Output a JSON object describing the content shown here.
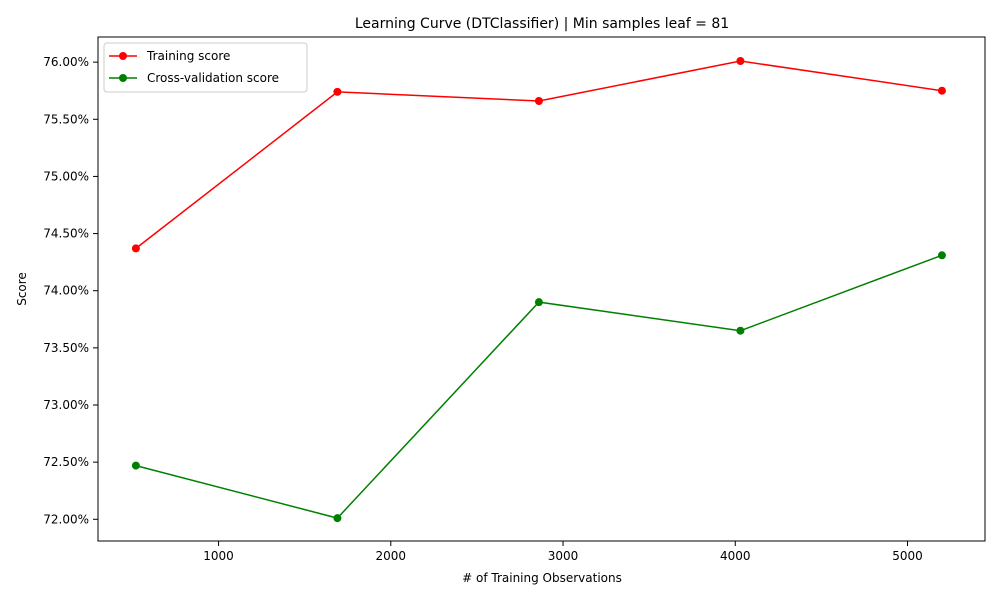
{
  "chart_data": {
    "type": "line",
    "title": "Learning Curve (DTClassifier) | Min samples leaf = 81",
    "xlabel": "# of Training Observations",
    "ylabel": "Score",
    "xlim": [
      300,
      5450
    ],
    "ylim": [
      0.7181,
      0.7622
    ],
    "x_ticks": [
      1000,
      2000,
      3000,
      4000,
      5000
    ],
    "x_tick_labels": [
      "1000",
      "2000",
      "3000",
      "4000",
      "5000"
    ],
    "y_ticks": [
      0.72,
      0.725,
      0.73,
      0.735,
      0.74,
      0.745,
      0.75,
      0.755,
      0.76
    ],
    "y_tick_labels": [
      "72.00%",
      "72.50%",
      "73.00%",
      "73.50%",
      "74.00%",
      "74.50%",
      "75.00%",
      "75.50%",
      "76.00%"
    ],
    "x": [
      520,
      1690,
      2860,
      4030,
      5200
    ],
    "series": [
      {
        "name": "Training score",
        "color": "#ff0000",
        "values": [
          0.7437,
          0.7574,
          0.7566,
          0.7601,
          0.7575
        ]
      },
      {
        "name": "Cross-validation score",
        "color": "#008000",
        "values": [
          0.7247,
          0.7201,
          0.739,
          0.7365,
          0.7431
        ]
      }
    ],
    "grid": false,
    "legend_position": "upper-left"
  }
}
